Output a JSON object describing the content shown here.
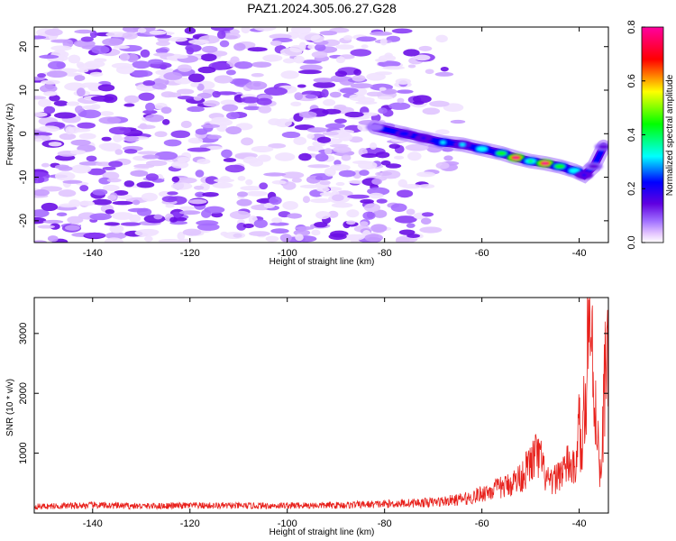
{
  "figure": {
    "title": "PAZ1.2024.305.06.27.G28"
  },
  "chart_data": [
    {
      "type": "heatmap",
      "title": "PAZ1.2024.305.06.27.G28",
      "xlabel": "Height of straight line (km)",
      "ylabel": "Frequency (Hz)",
      "xlim": [
        -152,
        -34
      ],
      "ylim": [
        -25,
        24.5
      ],
      "xticks": [
        -140,
        -120,
        -100,
        -80,
        -60,
        -40
      ],
      "yticks": [
        -20,
        -10,
        0,
        10,
        20
      ],
      "colorbar": {
        "label": "Normalized spectral amplitude",
        "range": [
          0,
          0.8
        ],
        "ticks": [
          0.0,
          0.2,
          0.4,
          0.6,
          0.8
        ],
        "colors": [
          "#ffffff",
          "#e6c8ff",
          "#a070ff",
          "#6000e0",
          "#0000ff",
          "#00ffff",
          "#00ff00",
          "#ffff00",
          "#ff0000",
          "#ff00a0"
        ]
      },
      "noise_region": {
        "x_range": [
          -152,
          -62
        ],
        "y_range": [
          -25,
          24.5
        ],
        "typical_amplitude": 0.05
      },
      "ridge": {
        "points": [
          {
            "x": -82,
            "y": 1.5,
            "amp": 0.06
          },
          {
            "x": -76,
            "y": 0.0,
            "amp": 0.22
          },
          {
            "x": -72,
            "y": -1.0,
            "amp": 0.18
          },
          {
            "x": -68,
            "y": -2.0,
            "amp": 0.28
          },
          {
            "x": -64,
            "y": -2.5,
            "amp": 0.24
          },
          {
            "x": -60,
            "y": -3.5,
            "amp": 0.32
          },
          {
            "x": -56,
            "y": -4.5,
            "amp": 0.4
          },
          {
            "x": -53,
            "y": -5.5,
            "amp": 0.75
          },
          {
            "x": -50,
            "y": -6.3,
            "amp": 0.34
          },
          {
            "x": -47,
            "y": -6.8,
            "amp": 0.78
          },
          {
            "x": -44,
            "y": -7.5,
            "amp": 0.4
          },
          {
            "x": -41,
            "y": -8.5,
            "amp": 0.3
          },
          {
            "x": -39,
            "y": -9.5,
            "amp": 0.15
          },
          {
            "x": -37,
            "y": -7.5,
            "amp": 0.14
          },
          {
            "x": -35,
            "y": -3.0,
            "amp": 0.12
          }
        ]
      }
    },
    {
      "type": "line",
      "title": "",
      "xlabel": "Height of straight line (km)",
      "ylabel": "SNR (10 * v/v)",
      "xlim": [
        -152,
        -34
      ],
      "ylim": [
        0,
        3600
      ],
      "xticks": [
        -140,
        -120,
        -100,
        -80,
        -60,
        -40
      ],
      "yticks": [
        1000,
        2000,
        3000
      ],
      "series": [
        {
          "color": "#e8211c",
          "x": [
            -152,
            -145,
            -140,
            -130,
            -120,
            -110,
            -100,
            -90,
            -80,
            -70,
            -65,
            -62,
            -60,
            -58,
            -55,
            -52,
            -50,
            -49,
            -48,
            -47,
            -46,
            -45,
            -44,
            -43,
            -42,
            -41,
            -40,
            -39.5,
            -39,
            -38.5,
            -38,
            -37.5,
            -37,
            -36.5,
            -36,
            -35.5,
            -35,
            -34.5,
            -34
          ],
          "y": [
            110,
            120,
            130,
            115,
            125,
            120,
            125,
            130,
            150,
            180,
            220,
            260,
            330,
            380,
            450,
            600,
            820,
            950,
            900,
            620,
            480,
            560,
            680,
            750,
            820,
            700,
            1500,
            800,
            1900,
            2400,
            3550,
            2800,
            2200,
            1600,
            1100,
            400,
            1800,
            2600,
            3100
          ]
        }
      ]
    }
  ]
}
